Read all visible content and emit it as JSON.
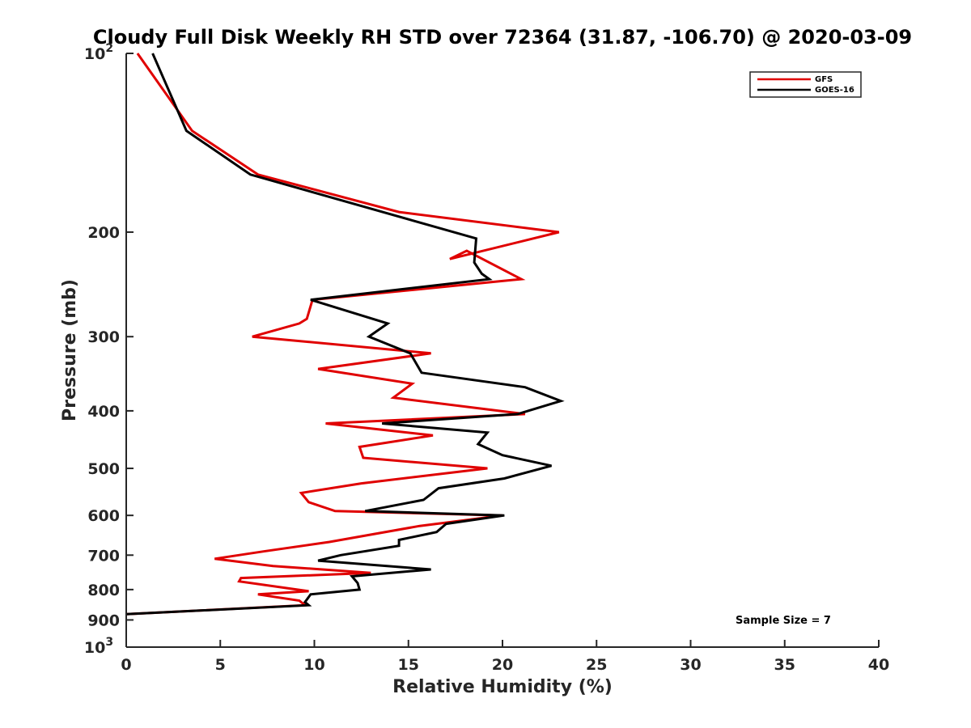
{
  "chart_data": {
    "type": "line",
    "title": "Cloudy Full Disk Weekly RH STD over 72364 (31.87, -106.70) @ 2020-03-09",
    "xlabel": "Relative Humidity (%)",
    "ylabel": "Pressure (mb)",
    "xlim": [
      0,
      40
    ],
    "ylim": [
      100,
      1000
    ],
    "yscale": "log",
    "y_reversed": true,
    "x_ticks": [
      "0",
      "5",
      "10",
      "15",
      "20",
      "25",
      "30",
      "35",
      "40"
    ],
    "y_ticks": [
      {
        "value": 100,
        "base": "10",
        "exp": "2"
      },
      {
        "value": 200,
        "label": "200"
      },
      {
        "value": 300,
        "label": "300"
      },
      {
        "value": 400,
        "label": "400"
      },
      {
        "value": 500,
        "label": "500"
      },
      {
        "value": 600,
        "label": "600"
      },
      {
        "value": 700,
        "label": "700"
      },
      {
        "value": 800,
        "label": "800"
      },
      {
        "value": 900,
        "label": "900"
      },
      {
        "value": 1000,
        "base": "10",
        "exp": "3"
      }
    ],
    "legend_position": "top-right",
    "annotation": "Sample Size = 7",
    "series": [
      {
        "name": "GFS",
        "color": "#e00000",
        "x": [
          0.6,
          3.5,
          7.0,
          14.5,
          23.0,
          17.2,
          18.1,
          21.0,
          9.9,
          9.6,
          9.2,
          6.7,
          16.2,
          10.2,
          15.2,
          14.2,
          21.2,
          10.6,
          16.3,
          12.4,
          12.6,
          19.2,
          12.5,
          9.3,
          9.7,
          11.1,
          20.0,
          15.6,
          10.8,
          7.3,
          4.7,
          7.8,
          13.0,
          6.1,
          6.0,
          9.7,
          7.0,
          9.2,
          9.5,
          0.0
        ],
        "y": [
          100,
          135,
          160,
          185,
          200,
          222,
          215,
          240,
          260,
          280,
          285,
          300,
          320,
          340,
          360,
          380,
          405,
          420,
          440,
          460,
          480,
          500,
          530,
          550,
          570,
          590,
          600,
          625,
          665,
          690,
          710,
          730,
          750,
          765,
          775,
          805,
          815,
          835,
          850,
          880
        ]
      },
      {
        "name": "GOES-16",
        "color": "#000000",
        "x": [
          1.4,
          3.2,
          6.6,
          18.6,
          18.5,
          18.9,
          19.3,
          9.8,
          13.9,
          12.9,
          15.1,
          15.7,
          21.2,
          23.1,
          20.8,
          13.6,
          19.2,
          18.7,
          20.0,
          22.6,
          20.1,
          16.6,
          15.8,
          12.7,
          20.1,
          17.0,
          16.5,
          14.5,
          14.5,
          11.4,
          10.2,
          16.2,
          12.0,
          12.3,
          12.4,
          9.8,
          9.5,
          9.7,
          0.0
        ],
        "y": [
          100,
          135,
          160,
          205,
          225,
          235,
          240,
          260,
          285,
          300,
          320,
          345,
          365,
          385,
          405,
          420,
          435,
          455,
          475,
          495,
          520,
          540,
          565,
          590,
          600,
          620,
          640,
          660,
          675,
          700,
          715,
          740,
          760,
          780,
          800,
          815,
          840,
          850,
          880
        ]
      }
    ]
  }
}
